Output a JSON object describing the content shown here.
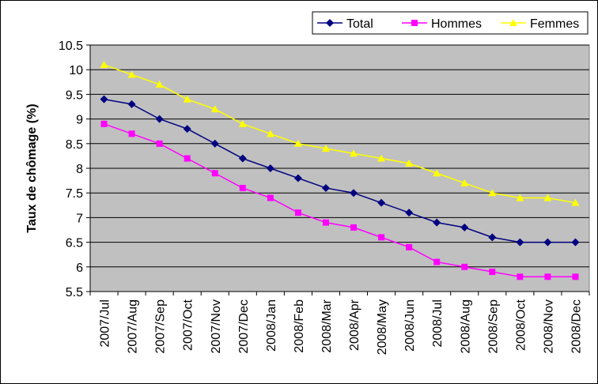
{
  "chart_data": {
    "type": "line",
    "title": "",
    "xlabel": "",
    "ylabel": "Taux de chômage (%)",
    "ylim": [
      5.5,
      10.5
    ],
    "ytick_step": 0.5,
    "grid": true,
    "legend_position": "top-right",
    "categories": [
      "2007/Jul",
      "2007/Aug",
      "2007/Sep",
      "2007/Oct",
      "2007/Nov",
      "2007/Dec",
      "2008/Jan",
      "2008/Feb",
      "2008/Mar",
      "2008/Apr",
      "2008/May",
      "2008/Jun",
      "2008/Jul",
      "2008/Aug",
      "2008/Sep",
      "2008/Oct",
      "2008/Nov",
      "2008/Dec"
    ],
    "series": [
      {
        "name": "Total",
        "color": "#000080",
        "marker": "diamond",
        "values": [
          9.4,
          9.3,
          9.0,
          8.8,
          8.5,
          8.2,
          8.0,
          7.8,
          7.6,
          7.5,
          7.3,
          7.1,
          6.9,
          6.8,
          6.6,
          6.5,
          6.5,
          6.5
        ]
      },
      {
        "name": "Hommes",
        "color": "#ff00ff",
        "marker": "square",
        "values": [
          8.9,
          8.7,
          8.5,
          8.2,
          7.9,
          7.6,
          7.4,
          7.1,
          6.9,
          6.8,
          6.6,
          6.4,
          6.1,
          6.0,
          5.9,
          5.8,
          5.8,
          5.8
        ]
      },
      {
        "name": "Femmes",
        "color": "#ffff00",
        "marker": "triangle",
        "values": [
          10.1,
          9.9,
          9.7,
          9.4,
          9.2,
          8.9,
          8.7,
          8.5,
          8.4,
          8.3,
          8.2,
          8.1,
          7.9,
          7.7,
          7.5,
          7.4,
          7.4,
          7.3
        ]
      }
    ],
    "colors": {
      "plot_background": "#c0c0c0",
      "gridline": "#000000",
      "axis": "#808080"
    }
  }
}
